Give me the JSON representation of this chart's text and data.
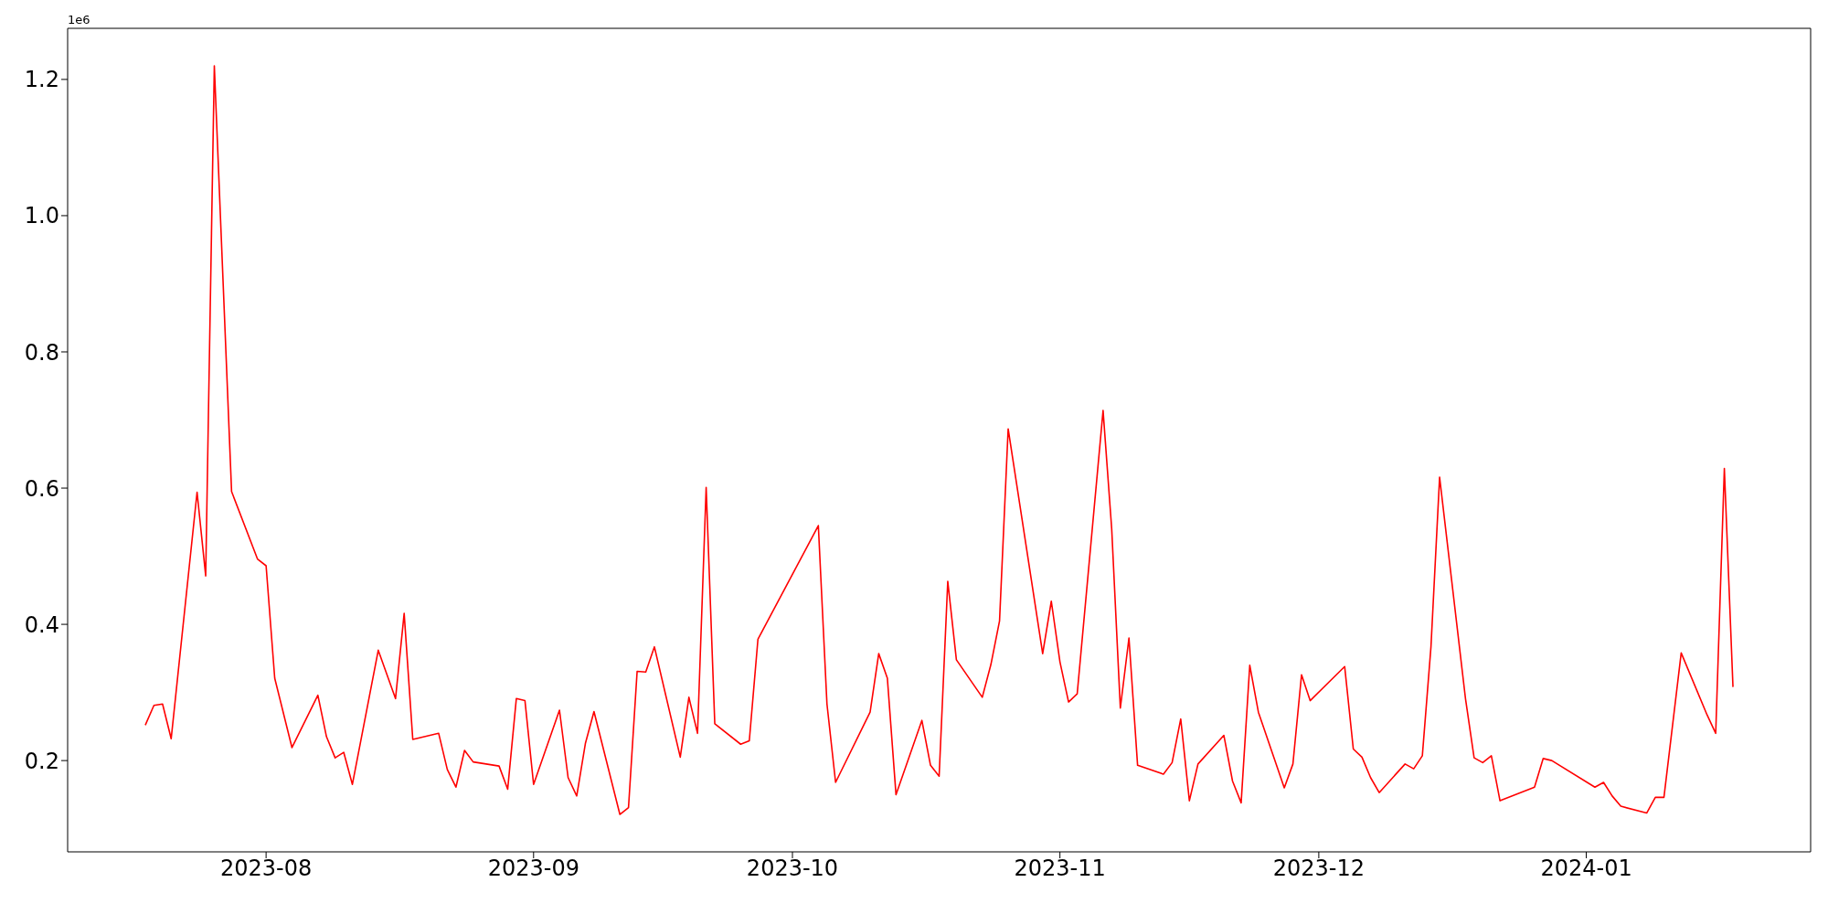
{
  "chart_data": {
    "type": "line",
    "x": [
      "2023-07-18",
      "2023-07-19",
      "2023-07-20",
      "2023-07-21",
      "2023-07-24",
      "2023-07-25",
      "2023-07-26",
      "2023-07-28",
      "2023-07-31",
      "2023-08-01",
      "2023-08-02",
      "2023-08-04",
      "2023-08-07",
      "2023-08-08",
      "2023-08-09",
      "2023-08-10",
      "2023-08-11",
      "2023-08-14",
      "2023-08-16",
      "2023-08-17",
      "2023-08-18",
      "2023-08-21",
      "2023-08-22",
      "2023-08-23",
      "2023-08-24",
      "2023-08-25",
      "2023-08-28",
      "2023-08-29",
      "2023-08-30",
      "2023-08-31",
      "2023-09-01",
      "2023-09-04",
      "2023-09-05",
      "2023-09-06",
      "2023-09-07",
      "2023-09-08",
      "2023-09-11",
      "2023-09-12",
      "2023-09-13",
      "2023-09-14",
      "2023-09-15",
      "2023-09-18",
      "2023-09-19",
      "2023-09-20",
      "2023-09-21",
      "2023-09-22",
      "2023-09-25",
      "2023-09-26",
      "2023-09-27",
      "2023-10-04",
      "2023-10-05",
      "2023-10-06",
      "2023-10-10",
      "2023-10-11",
      "2023-10-12",
      "2023-10-13",
      "2023-10-16",
      "2023-10-17",
      "2023-10-18",
      "2023-10-19",
      "2023-10-20",
      "2023-10-23",
      "2023-10-24",
      "2023-10-25",
      "2023-10-26",
      "2023-10-30",
      "2023-10-31",
      "2023-11-01",
      "2023-11-02",
      "2023-11-03",
      "2023-11-06",
      "2023-11-07",
      "2023-11-08",
      "2023-11-09",
      "2023-11-10",
      "2023-11-13",
      "2023-11-14",
      "2023-11-15",
      "2023-11-16",
      "2023-11-17",
      "2023-11-20",
      "2023-11-21",
      "2023-11-22",
      "2023-11-23",
      "2023-11-24",
      "2023-11-27",
      "2023-11-28",
      "2023-11-29",
      "2023-11-30",
      "2023-12-04",
      "2023-12-05",
      "2023-12-06",
      "2023-12-07",
      "2023-12-08",
      "2023-12-11",
      "2023-12-12",
      "2023-12-13",
      "2023-12-14",
      "2023-12-15",
      "2023-12-18",
      "2023-12-19",
      "2023-12-20",
      "2023-12-21",
      "2023-12-22",
      "2023-12-26",
      "2023-12-27",
      "2023-12-28",
      "2024-01-02",
      "2024-01-03",
      "2024-01-04",
      "2024-01-05",
      "2024-01-08",
      "2024-01-09",
      "2024-01-10",
      "2024-01-12",
      "2024-01-15",
      "2024-01-16",
      "2024-01-17",
      "2024-01-18"
    ],
    "series": [
      {
        "color": "#ff0000",
        "values": [
          0.252,
          0.281,
          0.283,
          0.232,
          0.594,
          0.471,
          1.22,
          0.595,
          0.496,
          0.486,
          0.321,
          0.219,
          0.296,
          0.235,
          0.204,
          0.212,
          0.165,
          0.362,
          0.291,
          0.416,
          0.231,
          0.24,
          0.187,
          0.161,
          0.215,
          0.198,
          0.192,
          0.158,
          0.291,
          0.288,
          0.165,
          0.274,
          0.175,
          0.148,
          0.225,
          0.272,
          0.121,
          0.131,
          0.331,
          0.33,
          0.367,
          0.205,
          0.293,
          0.24,
          0.601,
          0.254,
          0.224,
          0.229,
          0.378,
          0.545,
          0.283,
          0.168,
          0.271,
          0.357,
          0.321,
          0.15,
          0.259,
          0.193,
          0.177,
          0.463,
          0.348,
          0.293,
          0.341,
          0.405,
          0.687,
          0.357,
          0.434,
          0.345,
          0.286,
          0.298,
          0.714,
          0.54,
          0.277,
          0.38,
          0.193,
          0.18,
          0.197,
          0.261,
          0.141,
          0.195,
          0.237,
          0.17,
          0.138,
          0.34,
          0.271,
          0.16,
          0.195,
          0.326,
          0.288,
          0.338,
          0.217,
          0.205,
          0.175,
          0.153,
          0.195,
          0.188,
          0.207,
          0.367,
          0.616,
          0.291,
          0.204,
          0.197,
          0.207,
          0.141,
          0.161,
          0.203,
          0.2,
          0.161,
          0.168,
          0.148,
          0.133,
          0.123,
          0.146,
          0.146,
          0.358,
          0.267,
          0.24,
          0.629,
          0.308
        ]
      }
    ],
    "xlim": [
      "2023-07-09",
      "2024-01-27"
    ],
    "xticks": [
      {
        "value": "2023-08-01",
        "label": "2023-08"
      },
      {
        "value": "2023-09-01",
        "label": "2023-09"
      },
      {
        "value": "2023-10-01",
        "label": "2023-10"
      },
      {
        "value": "2023-11-01",
        "label": "2023-11"
      },
      {
        "value": "2023-12-01",
        "label": "2023-12"
      },
      {
        "value": "2024-01-01",
        "label": "2024-01"
      }
    ],
    "ylim": [
      0.066,
      1.275
    ],
    "yticks": [
      0.2,
      0.4,
      0.6,
      0.8,
      {
        "value": 1,
        "label": "1.0"
      },
      1.2
    ],
    "annotations": [
      "1e6"
    ],
    "line_style": "solid"
  }
}
